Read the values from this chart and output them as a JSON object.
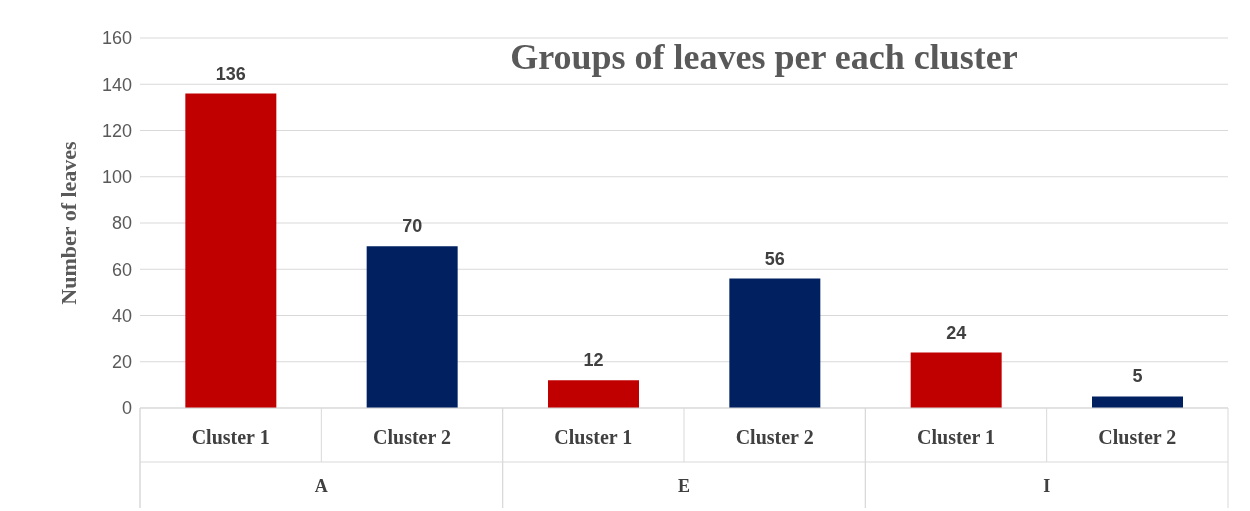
{
  "chart_data": {
    "type": "bar",
    "title": "Groups of leaves per each cluster",
    "ylabel": "Number of leaves",
    "categories": [
      "Cluster 1",
      "Cluster 2",
      "Cluster 1",
      "Cluster 2",
      "Cluster 1",
      "Cluster 2"
    ],
    "values": [
      136,
      70,
      12,
      56,
      24,
      5
    ],
    "colors": [
      "#c00000",
      "#002060",
      "#c00000",
      "#002060",
      "#c00000",
      "#002060"
    ],
    "annotations": [
      "A",
      "E",
      "I"
    ],
    "ylim": [
      0,
      160
    ],
    "yticks": [
      0,
      20,
      40,
      60,
      80,
      100,
      120,
      140,
      160
    ],
    "grid": "y",
    "data_labels": true
  }
}
